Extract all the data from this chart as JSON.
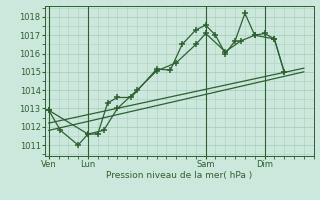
{
  "background_color": "#cce8dc",
  "grid_color": "#aacfbf",
  "line_color": "#2d6030",
  "xlabel": "Pression niveau de la mer( hPa )",
  "ylim": [
    1010.4,
    1018.6
  ],
  "yticks": [
    1011,
    1012,
    1013,
    1014,
    1015,
    1016,
    1017,
    1018
  ],
  "xtick_labels": [
    "Ven",
    "Lun",
    "Sam",
    "Dim"
  ],
  "xtick_positions": [
    0,
    2,
    8,
    11
  ],
  "vlines_x": [
    0,
    2,
    8,
    11
  ],
  "xlim": [
    -0.2,
    13.5
  ],
  "line1_x": [
    0,
    0.6,
    1.5,
    2.0,
    2.5,
    3.0,
    3.5,
    4.2,
    5.5,
    6.2,
    6.8,
    7.5,
    8.0,
    8.5,
    9.0,
    9.5,
    10.0,
    10.5,
    11.0,
    11.5,
    12.0
  ],
  "line1_y": [
    1012.9,
    1011.8,
    1011.0,
    1011.6,
    1011.6,
    1013.3,
    1013.6,
    1013.6,
    1015.15,
    1015.1,
    1016.5,
    1017.3,
    1017.55,
    1017.0,
    1016.0,
    1016.7,
    1018.2,
    1017.0,
    1017.1,
    1016.8,
    1015.0
  ],
  "line2_x": [
    0,
    2.0,
    2.8,
    3.5,
    4.5,
    5.5,
    6.5,
    7.5,
    8.0,
    9.0,
    9.8,
    10.5,
    11.5,
    12.0
  ],
  "line2_y": [
    1012.9,
    1011.6,
    1011.8,
    1013.0,
    1014.0,
    1015.05,
    1015.5,
    1016.5,
    1017.1,
    1016.1,
    1016.7,
    1017.0,
    1016.8,
    1015.0
  ],
  "line3_x": [
    0,
    13.0
  ],
  "line3_y": [
    1011.8,
    1015.0
  ],
  "line4_x": [
    0,
    13.0
  ],
  "line4_y": [
    1012.2,
    1015.2
  ]
}
